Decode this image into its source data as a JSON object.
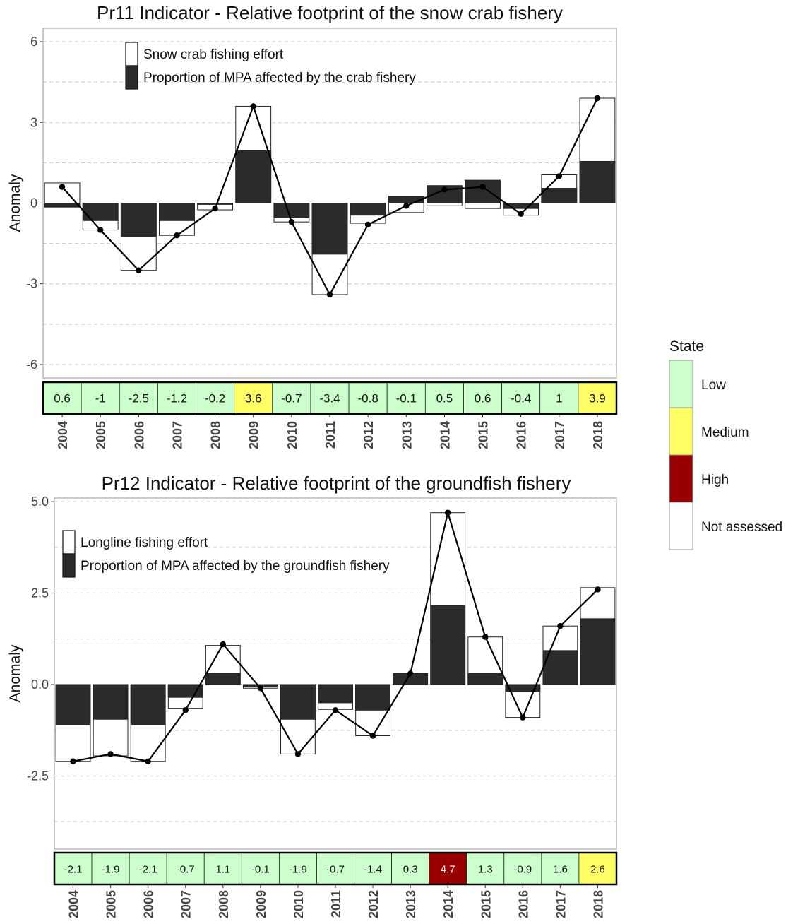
{
  "chart_data": [
    {
      "type": "bar",
      "title": "Pr11 Indicator - Relative footprint of the snow crab fishery",
      "ylabel": "Anomaly",
      "ylim": [
        -6.5,
        6.5
      ],
      "yticks": [
        6,
        3,
        0,
        -3,
        -6
      ],
      "ytick_labels": [
        "6",
        "3",
        "0",
        "-3",
        "-6"
      ],
      "grid": "horizontal dashed",
      "legend_position": "top-left",
      "categories": [
        "2004",
        "2005",
        "2006",
        "2007",
        "2008",
        "2009",
        "2010",
        "2011",
        "2012",
        "2013",
        "2014",
        "2015",
        "2016",
        "2017",
        "2018"
      ],
      "series": [
        {
          "name": "Snow crab fishing effort",
          "color": "#ffffff",
          "values": [
            0.75,
            -1.0,
            -2.5,
            -1.2,
            -0.25,
            3.6,
            -0.7,
            -3.4,
            -0.75,
            -0.35,
            -0.1,
            -0.2,
            -0.45,
            1.05,
            3.9
          ]
        },
        {
          "name": "Proportion of MPA affected by the crab fishery",
          "color": "#2b2b2b",
          "values": [
            -0.15,
            -0.65,
            -1.25,
            -0.65,
            -0.05,
            1.95,
            -0.55,
            -1.9,
            -0.45,
            0.25,
            0.65,
            0.85,
            -0.2,
            0.55,
            1.55
          ]
        }
      ],
      "line_values": [
        0.6,
        -1,
        -2.5,
        -1.2,
        -0.2,
        3.6,
        -0.7,
        -3.4,
        -0.8,
        -0.1,
        0.5,
        0.6,
        -0.4,
        1,
        3.9
      ],
      "state_labels": [
        "0.6",
        "-1",
        "-2.5",
        "-1.2",
        "-0.2",
        "3.6",
        "-0.7",
        "-3.4",
        "-0.8",
        "-0.1",
        "0.5",
        "0.6",
        "-0.4",
        "1",
        "3.9"
      ],
      "state_values": [
        "Low",
        "Low",
        "Low",
        "Low",
        "Low",
        "Medium",
        "Low",
        "Low",
        "Low",
        "Low",
        "Low",
        "Low",
        "Low",
        "Low",
        "Medium"
      ]
    },
    {
      "type": "bar",
      "title": "Pr12 Indicator - Relative footprint of the groundfish fishery",
      "ylabel": "Anomaly",
      "ylim": [
        -4.5,
        5.1
      ],
      "yticks": [
        5,
        2.5,
        0,
        -2.5
      ],
      "ytick_labels": [
        "5.0",
        "2.5",
        "0.0",
        "-2.5"
      ],
      "grid": "horizontal dashed",
      "legend_position": "top-left",
      "categories": [
        "2004",
        "2005",
        "2006",
        "2007",
        "2008",
        "2009",
        "2010",
        "2011",
        "2012",
        "2013",
        "2014",
        "2015",
        "2016",
        "2017",
        "2018"
      ],
      "series": [
        {
          "name": "Longline fishing effort",
          "color": "#ffffff",
          "values": [
            -2.1,
            -1.95,
            -2.1,
            -0.65,
            1.07,
            -0.1,
            -1.9,
            -0.68,
            -1.4,
            0.3,
            4.7,
            1.3,
            -0.9,
            1.6,
            2.65
          ]
        },
        {
          "name": "Proportion of MPA affected by the groundfish fishery",
          "color": "#2b2b2b",
          "values": [
            -1.1,
            -0.95,
            -1.1,
            -0.35,
            0.3,
            -0.05,
            -0.95,
            -0.5,
            -0.7,
            0.3,
            2.17,
            0.3,
            -0.2,
            0.93,
            1.8
          ]
        }
      ],
      "line_values": [
        -2.1,
        -1.9,
        -2.1,
        -0.7,
        1.1,
        -0.1,
        -1.9,
        -0.7,
        -1.4,
        0.3,
        4.7,
        1.3,
        -0.9,
        1.6,
        2.6
      ],
      "state_labels": [
        "-2.1",
        "-1.9",
        "-2.1",
        "-0.7",
        "1.1",
        "-0.1",
        "-1.9",
        "-0.7",
        "-1.4",
        "0.3",
        "4.7",
        "1.3",
        "-0.9",
        "1.6",
        "2.6"
      ],
      "state_values": [
        "Low",
        "Low",
        "Low",
        "Low",
        "Low",
        "Low",
        "Low",
        "Low",
        "Low",
        "Low",
        "High",
        "Low",
        "Low",
        "Low",
        "Medium"
      ]
    }
  ],
  "state_legend": {
    "title": "State",
    "items": [
      {
        "label": "Low",
        "color": "#ccffcc"
      },
      {
        "label": "Medium",
        "color": "#ffff66"
      },
      {
        "label": "High",
        "color": "#990000"
      },
      {
        "label": "Not assessed",
        "color": "#ffffff"
      }
    ]
  }
}
